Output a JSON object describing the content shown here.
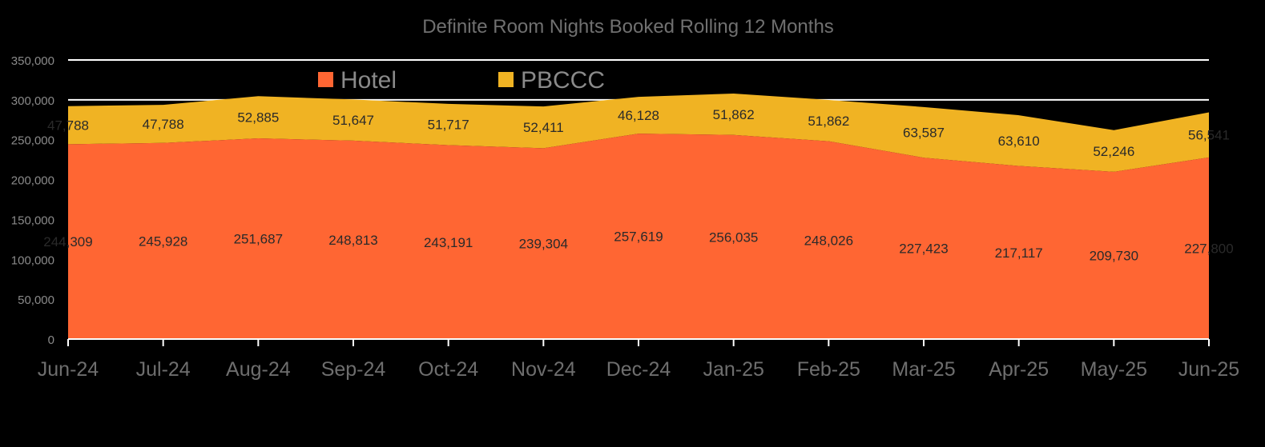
{
  "chart_data": {
    "type": "area",
    "stacked": true,
    "title": "Definite Room Nights Booked  Rolling  12 Months",
    "categories": [
      "Jun-24",
      "Jul-24",
      "Aug-24",
      "Sep-24",
      "Oct-24",
      "Nov-24",
      "Dec-24",
      "Jan-25",
      "Feb-25",
      "Mar-25",
      "Apr-25",
      "May-25",
      "Jun-25"
    ],
    "series": [
      {
        "name": "Hotel",
        "color": "#ff6633",
        "values": [
          244309,
          245928,
          251687,
          248813,
          243191,
          239304,
          257619,
          256035,
          248026,
          227423,
          217117,
          209730,
          227800
        ],
        "labels": [
          "244,309",
          "245,928",
          "251,687",
          "248,813",
          "243,191",
          "239,304",
          "257,619",
          "256,035",
          "248,026",
          "227,423",
          "217,117",
          "209,730",
          "227,800"
        ]
      },
      {
        "name": "PBCCC",
        "color": "#f0b323",
        "values": [
          47788,
          47788,
          52885,
          51647,
          51717,
          52411,
          46128,
          51862,
          51862,
          63587,
          63610,
          52246,
          56541
        ],
        "labels": [
          "47,788",
          "47,788",
          "52,885",
          "51,647",
          "51,717",
          "52,411",
          "46,128",
          "51,862",
          "51,862",
          "63,587",
          "63,610",
          "52,246",
          "56,541"
        ]
      }
    ],
    "ylim": [
      0,
      350000
    ],
    "yticks": [
      0,
      50000,
      100000,
      150000,
      200000,
      250000,
      300000,
      350000
    ],
    "ytick_labels": [
      "0",
      "50,000",
      "100,000",
      "150,000",
      "200,000",
      "250,000",
      "300,000",
      "350,000"
    ],
    "gridlines": [
      300000,
      350000
    ],
    "legend_position": "top-left"
  },
  "colors": {
    "background": "#000000",
    "gridline": "#ffffff",
    "axis": "#ffffff"
  }
}
